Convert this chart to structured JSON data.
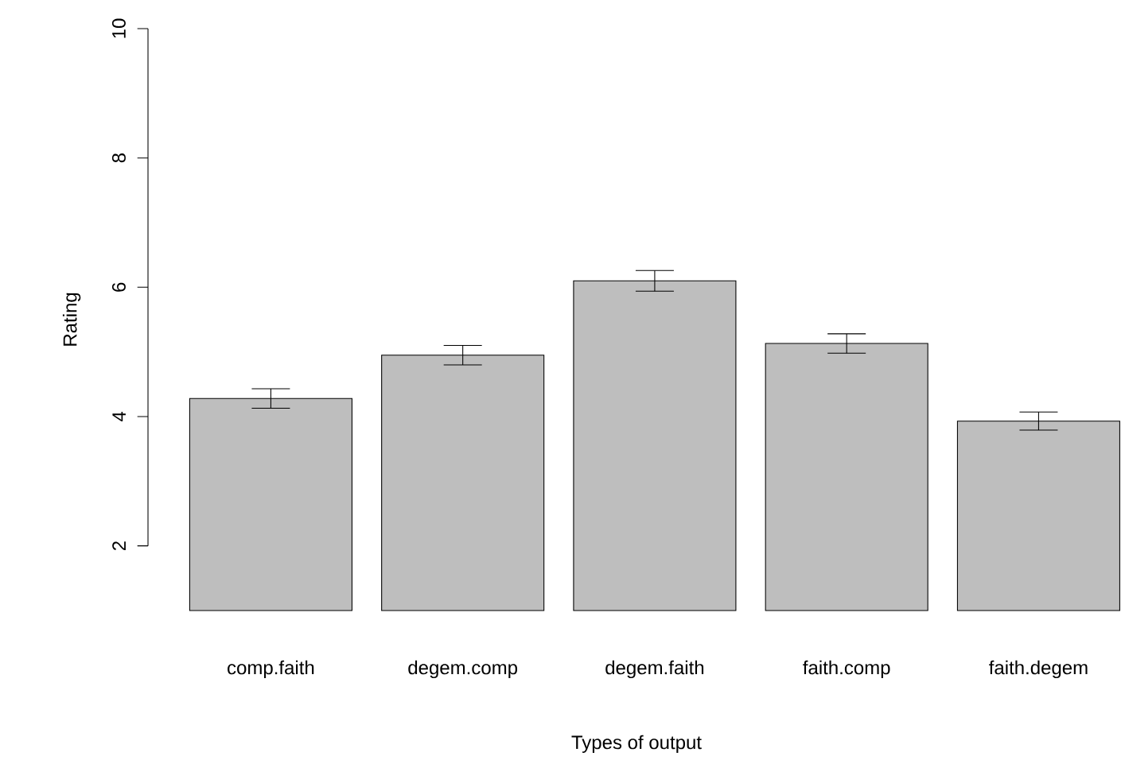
{
  "chart_data": {
    "type": "bar",
    "xlabel": "Types of output",
    "ylabel": "Rating",
    "categories": [
      "comp.faith",
      "degem.comp",
      "degem.faith",
      "faith.comp",
      "faith.degem"
    ],
    "values": [
      4.28,
      4.95,
      6.1,
      5.13,
      3.93
    ],
    "errors": [
      0.15,
      0.15,
      0.16,
      0.15,
      0.14
    ],
    "color": "#bebebe",
    "ylim": [
      1,
      10
    ],
    "yticks": [
      2,
      4,
      6,
      8,
      10
    ]
  }
}
